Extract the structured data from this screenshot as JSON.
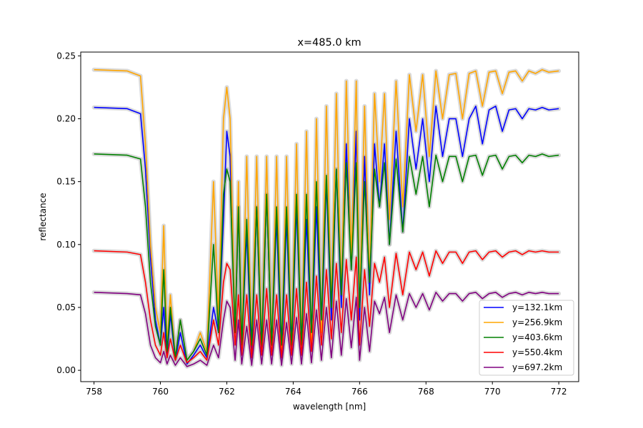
{
  "chart_data": {
    "type": "line",
    "title": "x=485.0 km",
    "xlabel": "wavelength [nm]",
    "ylabel": "reflectance",
    "xlim": [
      757.6,
      772.6
    ],
    "ylim": [
      -0.009,
      0.253
    ],
    "xticks": [
      758,
      760,
      762,
      764,
      766,
      768,
      770,
      772
    ],
    "xtick_labels": [
      "758",
      "760",
      "762",
      "764",
      "766",
      "768",
      "770",
      "772"
    ],
    "yticks": [
      0.0,
      0.05,
      0.1,
      0.15,
      0.2,
      0.25
    ],
    "ytick_labels": [
      "0.00",
      "0.05",
      "0.10",
      "0.15",
      "0.20",
      "0.25"
    ],
    "grid": false,
    "legend_position": "lower-right",
    "band_color": "#b0b0b0",
    "series": [
      {
        "name": "y=132.1km",
        "color": "#0000ff",
        "x": [
          758.0,
          759.0,
          759.4,
          759.55,
          759.7,
          759.85,
          760.0,
          760.1,
          760.2,
          760.3,
          760.45,
          760.6,
          760.8,
          761.0,
          761.2,
          761.4,
          761.6,
          761.75,
          761.9,
          762.0,
          762.1,
          762.25,
          762.35,
          762.45,
          762.6,
          762.75,
          762.9,
          763.05,
          763.2,
          763.35,
          763.5,
          763.65,
          763.8,
          763.95,
          764.1,
          764.25,
          764.4,
          764.55,
          764.7,
          764.85,
          765.0,
          765.15,
          765.3,
          765.45,
          765.6,
          765.75,
          765.9,
          766.0,
          766.15,
          766.3,
          766.45,
          766.6,
          766.75,
          766.9,
          767.1,
          767.3,
          767.5,
          767.7,
          767.9,
          768.1,
          768.3,
          768.5,
          768.7,
          768.9,
          769.1,
          769.3,
          769.5,
          769.7,
          769.9,
          770.1,
          770.3,
          770.5,
          770.7,
          770.9,
          771.1,
          771.3,
          771.5,
          771.7,
          772.0
        ],
        "y": [
          0.209,
          0.208,
          0.204,
          0.16,
          0.09,
          0.04,
          0.02,
          0.05,
          0.01,
          0.045,
          0.008,
          0.03,
          0.005,
          0.012,
          0.02,
          0.01,
          0.05,
          0.03,
          0.12,
          0.19,
          0.17,
          0.03,
          0.13,
          0.02,
          0.11,
          0.01,
          0.13,
          0.015,
          0.14,
          0.02,
          0.12,
          0.01,
          0.12,
          0.015,
          0.13,
          0.02,
          0.12,
          0.025,
          0.13,
          0.03,
          0.15,
          0.04,
          0.16,
          0.05,
          0.18,
          0.08,
          0.19,
          0.04,
          0.17,
          0.06,
          0.18,
          0.13,
          0.18,
          0.1,
          0.19,
          0.11,
          0.2,
          0.16,
          0.2,
          0.15,
          0.21,
          0.17,
          0.2,
          0.2,
          0.17,
          0.2,
          0.21,
          0.18,
          0.207,
          0.21,
          0.19,
          0.207,
          0.208,
          0.2,
          0.208,
          0.207,
          0.209,
          0.207,
          0.208
        ]
      },
      {
        "name": "y=256.9km",
        "color": "#ffa500",
        "x": [
          758.0,
          759.0,
          759.4,
          759.55,
          759.7,
          759.85,
          760.0,
          760.1,
          760.2,
          760.3,
          760.45,
          760.6,
          760.8,
          761.0,
          761.2,
          761.4,
          761.6,
          761.75,
          761.9,
          762.0,
          762.1,
          762.25,
          762.35,
          762.45,
          762.6,
          762.75,
          762.9,
          763.05,
          763.2,
          763.35,
          763.5,
          763.65,
          763.8,
          763.95,
          764.1,
          764.25,
          764.4,
          764.55,
          764.7,
          764.85,
          765.0,
          765.15,
          765.3,
          765.45,
          765.6,
          765.75,
          765.9,
          766.0,
          766.15,
          766.3,
          766.45,
          766.6,
          766.75,
          766.9,
          767.1,
          767.3,
          767.5,
          767.7,
          767.9,
          768.1,
          768.3,
          768.5,
          768.7,
          768.9,
          769.1,
          769.3,
          769.5,
          769.7,
          769.9,
          770.1,
          770.3,
          770.5,
          770.7,
          770.9,
          771.1,
          771.3,
          771.5,
          771.7,
          772.0
        ],
        "y": [
          0.239,
          0.238,
          0.234,
          0.18,
          0.1,
          0.05,
          0.03,
          0.115,
          0.02,
          0.06,
          0.01,
          0.04,
          0.008,
          0.015,
          0.03,
          0.015,
          0.15,
          0.04,
          0.2,
          0.225,
          0.2,
          0.03,
          0.15,
          0.02,
          0.17,
          0.02,
          0.17,
          0.02,
          0.17,
          0.02,
          0.17,
          0.015,
          0.17,
          0.02,
          0.18,
          0.02,
          0.19,
          0.02,
          0.2,
          0.03,
          0.21,
          0.05,
          0.22,
          0.06,
          0.23,
          0.09,
          0.23,
          0.05,
          0.21,
          0.07,
          0.22,
          0.15,
          0.22,
          0.12,
          0.23,
          0.13,
          0.235,
          0.19,
          0.235,
          0.17,
          0.238,
          0.2,
          0.235,
          0.236,
          0.2,
          0.236,
          0.238,
          0.21,
          0.237,
          0.238,
          0.22,
          0.237,
          0.238,
          0.23,
          0.238,
          0.236,
          0.239,
          0.237,
          0.238
        ]
      },
      {
        "name": "y=403.6km",
        "color": "#008000",
        "x": [
          758.0,
          759.0,
          759.4,
          759.55,
          759.7,
          759.85,
          760.0,
          760.1,
          760.2,
          760.3,
          760.45,
          760.6,
          760.8,
          761.0,
          761.2,
          761.4,
          761.6,
          761.75,
          761.9,
          762.0,
          762.1,
          762.25,
          762.35,
          762.45,
          762.6,
          762.75,
          762.9,
          763.05,
          763.2,
          763.35,
          763.5,
          763.65,
          763.8,
          763.95,
          764.1,
          764.25,
          764.4,
          764.55,
          764.7,
          764.85,
          765.0,
          765.15,
          765.3,
          765.45,
          765.6,
          765.75,
          765.9,
          766.0,
          766.15,
          766.3,
          766.45,
          766.6,
          766.75,
          766.9,
          767.1,
          767.3,
          767.5,
          767.7,
          767.9,
          768.1,
          768.3,
          768.5,
          768.7,
          768.9,
          769.1,
          769.3,
          769.5,
          769.7,
          769.9,
          770.1,
          770.3,
          770.5,
          770.7,
          770.9,
          771.1,
          771.3,
          771.5,
          771.7,
          772.0
        ],
        "y": [
          0.172,
          0.171,
          0.168,
          0.13,
          0.07,
          0.035,
          0.02,
          0.08,
          0.015,
          0.05,
          0.01,
          0.04,
          0.008,
          0.015,
          0.025,
          0.012,
          0.1,
          0.03,
          0.14,
          0.16,
          0.15,
          0.03,
          0.13,
          0.02,
          0.12,
          0.02,
          0.13,
          0.02,
          0.14,
          0.02,
          0.13,
          0.02,
          0.13,
          0.02,
          0.14,
          0.02,
          0.14,
          0.03,
          0.15,
          0.04,
          0.155,
          0.05,
          0.16,
          0.06,
          0.165,
          0.08,
          0.165,
          0.05,
          0.15,
          0.07,
          0.16,
          0.13,
          0.165,
          0.1,
          0.168,
          0.11,
          0.17,
          0.14,
          0.17,
          0.13,
          0.171,
          0.15,
          0.17,
          0.17,
          0.15,
          0.17,
          0.171,
          0.155,
          0.17,
          0.171,
          0.16,
          0.17,
          0.171,
          0.165,
          0.171,
          0.17,
          0.172,
          0.17,
          0.171
        ]
      },
      {
        "name": "y=550.4km",
        "color": "#ff0000",
        "x": [
          758.0,
          759.0,
          759.4,
          759.55,
          759.7,
          759.85,
          760.0,
          760.1,
          760.2,
          760.3,
          760.45,
          760.6,
          760.8,
          761.0,
          761.2,
          761.4,
          761.6,
          761.75,
          761.9,
          762.0,
          762.1,
          762.25,
          762.35,
          762.45,
          762.6,
          762.75,
          762.9,
          763.05,
          763.2,
          763.35,
          763.5,
          763.65,
          763.8,
          763.95,
          764.1,
          764.25,
          764.4,
          764.55,
          764.7,
          764.85,
          765.0,
          765.15,
          765.3,
          765.45,
          765.6,
          765.75,
          765.9,
          766.0,
          766.15,
          766.3,
          766.45,
          766.6,
          766.75,
          766.9,
          767.1,
          767.3,
          767.5,
          767.7,
          767.9,
          768.1,
          768.3,
          768.5,
          768.7,
          768.9,
          769.1,
          769.3,
          769.5,
          769.7,
          769.9,
          770.1,
          770.3,
          770.5,
          770.7,
          770.9,
          771.1,
          771.3,
          771.5,
          771.7,
          772.0
        ],
        "y": [
          0.095,
          0.094,
          0.092,
          0.07,
          0.04,
          0.02,
          0.012,
          0.03,
          0.01,
          0.025,
          0.008,
          0.02,
          0.006,
          0.01,
          0.015,
          0.008,
          0.04,
          0.02,
          0.07,
          0.085,
          0.08,
          0.02,
          0.06,
          0.012,
          0.06,
          0.01,
          0.06,
          0.012,
          0.065,
          0.012,
          0.06,
          0.01,
          0.06,
          0.012,
          0.065,
          0.012,
          0.07,
          0.015,
          0.075,
          0.02,
          0.08,
          0.025,
          0.085,
          0.03,
          0.088,
          0.04,
          0.09,
          0.02,
          0.08,
          0.035,
          0.085,
          0.07,
          0.09,
          0.05,
          0.093,
          0.06,
          0.094,
          0.08,
          0.094,
          0.075,
          0.095,
          0.085,
          0.094,
          0.094,
          0.085,
          0.094,
          0.095,
          0.088,
          0.094,
          0.095,
          0.09,
          0.094,
          0.095,
          0.092,
          0.095,
          0.094,
          0.095,
          0.094,
          0.094
        ]
      },
      {
        "name": "y=697.2km",
        "color": "#800080",
        "x": [
          758.0,
          759.0,
          759.4,
          759.55,
          759.7,
          759.85,
          760.0,
          760.1,
          760.2,
          760.3,
          760.45,
          760.6,
          760.8,
          761.0,
          761.2,
          761.4,
          761.6,
          761.75,
          761.9,
          762.0,
          762.1,
          762.25,
          762.35,
          762.45,
          762.6,
          762.75,
          762.9,
          763.05,
          763.2,
          763.35,
          763.5,
          763.65,
          763.8,
          763.95,
          764.1,
          764.25,
          764.4,
          764.55,
          764.7,
          764.85,
          765.0,
          765.15,
          765.3,
          765.45,
          765.6,
          765.75,
          765.9,
          766.0,
          766.15,
          766.3,
          766.45,
          766.6,
          766.75,
          766.9,
          767.1,
          767.3,
          767.5,
          767.7,
          767.9,
          768.1,
          768.3,
          768.5,
          768.7,
          768.9,
          769.1,
          769.3,
          769.5,
          769.7,
          769.9,
          770.1,
          770.3,
          770.5,
          770.7,
          770.9,
          771.1,
          771.3,
          771.5,
          771.7,
          772.0
        ],
        "y": [
          0.062,
          0.061,
          0.06,
          0.045,
          0.02,
          0.01,
          0.006,
          0.015,
          0.005,
          0.012,
          0.004,
          0.01,
          0.003,
          0.005,
          0.008,
          0.004,
          0.02,
          0.01,
          0.04,
          0.055,
          0.05,
          0.008,
          0.04,
          0.005,
          0.035,
          0.004,
          0.04,
          0.005,
          0.04,
          0.005,
          0.04,
          0.004,
          0.038,
          0.005,
          0.042,
          0.005,
          0.045,
          0.006,
          0.048,
          0.008,
          0.05,
          0.01,
          0.055,
          0.012,
          0.057,
          0.018,
          0.058,
          0.008,
          0.05,
          0.015,
          0.055,
          0.045,
          0.058,
          0.03,
          0.06,
          0.04,
          0.061,
          0.05,
          0.061,
          0.048,
          0.062,
          0.055,
          0.061,
          0.061,
          0.055,
          0.061,
          0.062,
          0.057,
          0.061,
          0.062,
          0.058,
          0.061,
          0.062,
          0.06,
          0.062,
          0.061,
          0.062,
          0.061,
          0.061
        ]
      }
    ]
  }
}
